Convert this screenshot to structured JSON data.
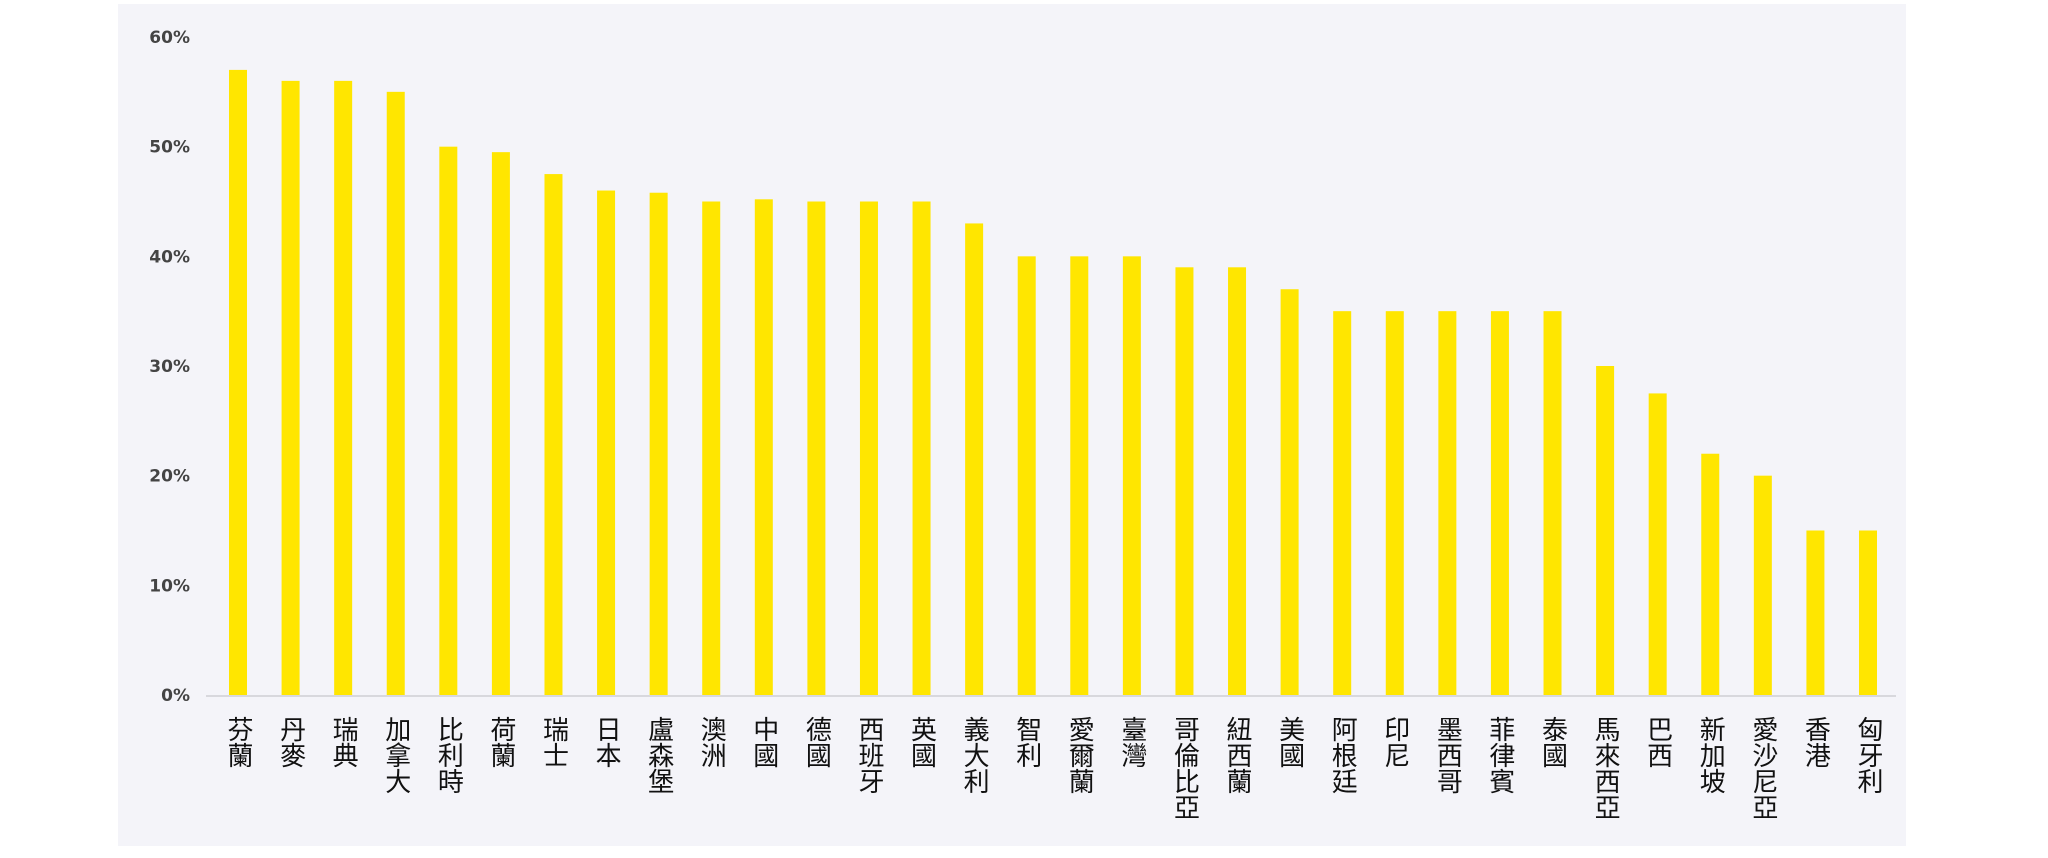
{
  "chart_data": {
    "type": "bar",
    "title": "",
    "xlabel": "",
    "ylabel": "",
    "ylim": [
      0,
      60
    ],
    "yticks": [
      "0%",
      "10%",
      "20%",
      "30%",
      "40%",
      "50%",
      "60%"
    ],
    "grid": false,
    "bar_color": "#ffe600",
    "background": "#f4f4f9",
    "categories": [
      "芬蘭",
      "丹麥",
      "瑞典",
      "加拿大",
      "比利時",
      "荷蘭",
      "瑞士",
      "日本",
      "盧森堡",
      "澳洲",
      "中國",
      "德國",
      "西班牙",
      "英國",
      "義大利",
      "智利",
      "愛爾蘭",
      "臺灣",
      "哥倫比亞",
      "紐西蘭",
      "美國",
      "阿根廷",
      "印尼",
      "墨西哥",
      "菲律賓",
      "泰國",
      "馬來西亞",
      "巴西",
      "新加坡",
      "愛沙尼亞",
      "香港",
      "匈牙利"
    ],
    "values": [
      57,
      56,
      56,
      55,
      50,
      49.5,
      47.5,
      46,
      45.8,
      45,
      45.2,
      45,
      45,
      45,
      43,
      40,
      40,
      40,
      39,
      39,
      37,
      35,
      35,
      35,
      35,
      35,
      30,
      27.5,
      22,
      20,
      15,
      15
    ]
  }
}
